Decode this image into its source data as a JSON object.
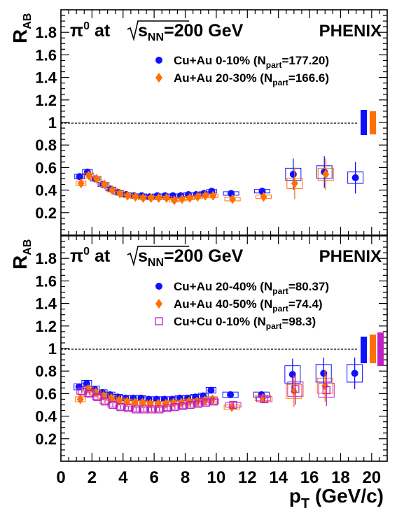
{
  "chart_data": {
    "type": "scatter",
    "xlabel": "p",
    "xlabel_sub": "T",
    "xlabel_unit": " (GeV/c)",
    "xlim": [
      0,
      21
    ],
    "x_ticks": [
      "0",
      "2",
      "4",
      "6",
      "8",
      "10",
      "12",
      "14",
      "16",
      "18",
      "20"
    ],
    "panels": [
      {
        "ylabel": "R",
        "ylabel_sub": "AB",
        "ylim": [
          0,
          2
        ],
        "y_ticks": [
          "0.2",
          "0.4",
          "0.6",
          "0.8",
          "1",
          "1.2",
          "1.4",
          "1.6",
          "1.8"
        ],
        "title": {
          "pi": "π",
          "sup": "0",
          "at": " at ",
          "sqrt_s": "s",
          "nn": "NN",
          "energy": "=200 GeV"
        },
        "experiment": "PHENIX",
        "reference_line": 1,
        "series": [
          {
            "name": "Cu+Au   0-10% (N",
            "name_sub": "part",
            "name_end": "=177.20)",
            "marker": "circle",
            "color": "#1010ff",
            "x": [
              1.25,
              1.75,
              2.25,
              2.75,
              3.25,
              3.75,
              4.25,
              4.75,
              5.25,
              5.75,
              6.25,
              6.75,
              7.25,
              7.75,
              8.25,
              8.75,
              9.25,
              9.75,
              11,
              13,
              15,
              17,
              19
            ],
            "y": [
              0.52,
              0.56,
              0.5,
              0.45,
              0.41,
              0.38,
              0.36,
              0.35,
              0.35,
              0.34,
              0.35,
              0.35,
              0.35,
              0.35,
              0.36,
              0.36,
              0.37,
              0.39,
              0.37,
              0.39,
              0.54,
              0.56,
              0.51
            ]
          },
          {
            "name": "Au+Au 20-30% (N",
            "name_sub": "part",
            "name_end": "=166.6)",
            "marker": "diamond",
            "color": "#ff7000",
            "x": [
              1.25,
              1.75,
              2.25,
              2.75,
              3.25,
              3.75,
              4.25,
              4.75,
              5.25,
              5.75,
              6.25,
              6.75,
              7.25,
              7.75,
              8.25,
              8.75,
              9.25,
              9.75,
              11,
              13,
              15,
              17
            ],
            "y": [
              0.46,
              0.53,
              0.5,
              0.45,
              0.4,
              0.37,
              0.35,
              0.34,
              0.33,
              0.33,
              0.33,
              0.33,
              0.31,
              0.32,
              0.33,
              0.34,
              0.35,
              0.35,
              0.32,
              0.34,
              0.46,
              0.54
            ]
          }
        ]
      },
      {
        "ylabel": "R",
        "ylabel_sub": "AB",
        "ylim": [
          0,
          2
        ],
        "y_ticks": [
          "0.2",
          "0.4",
          "0.6",
          "0.8",
          "1",
          "1.2",
          "1.4",
          "1.6",
          "1.8"
        ],
        "title": {
          "pi": "π",
          "sup": "0",
          "at": " at ",
          "sqrt_s": "s",
          "nn": "NN",
          "energy": "=200 GeV"
        },
        "experiment": "PHENIX",
        "reference_line": 1,
        "series": [
          {
            "name": "Cu+Au 20-40% (N",
            "name_sub": "part",
            "name_end": "=80.37)",
            "marker": "circle",
            "color": "#1010ff",
            "x": [
              1.25,
              1.75,
              2.25,
              2.75,
              3.25,
              3.75,
              4.25,
              4.75,
              5.25,
              5.75,
              6.25,
              6.75,
              7.25,
              7.75,
              8.25,
              8.75,
              9.25,
              9.75,
              11,
              13,
              15,
              17,
              19
            ],
            "y": [
              0.66,
              0.69,
              0.64,
              0.61,
              0.59,
              0.57,
              0.56,
              0.56,
              0.56,
              0.55,
              0.55,
              0.55,
              0.55,
              0.56,
              0.56,
              0.57,
              0.58,
              0.63,
              0.59,
              0.59,
              0.77,
              0.78,
              0.78
            ]
          },
          {
            "name": "Au+Au 40-50% (N",
            "name_sub": "part",
            "name_end": "=74.4)",
            "marker": "diamond",
            "color": "#ff7000",
            "x": [
              1.25,
              1.75,
              2.25,
              2.75,
              3.25,
              3.75,
              4.25,
              4.75,
              5.25,
              5.75,
              6.25,
              6.75,
              7.25,
              7.75,
              8.25,
              8.75,
              9.25,
              9.75,
              11,
              13,
              15,
              17
            ],
            "y": [
              0.55,
              0.64,
              0.61,
              0.58,
              0.56,
              0.54,
              0.53,
              0.52,
              0.52,
              0.51,
              0.51,
              0.51,
              0.52,
              0.52,
              0.53,
              0.53,
              0.54,
              0.55,
              0.48,
              0.56,
              0.62,
              0.67
            ]
          },
          {
            "name": "Cu+Cu 0-10% (N",
            "name_sub": "part",
            "name_end": "=98.3)",
            "marker": "open-square",
            "color": "#c020c0",
            "x": [
              1.25,
              1.75,
              2.25,
              2.75,
              3.25,
              3.75,
              4.25,
              4.75,
              5.25,
              5.75,
              6.25,
              6.75,
              7.25,
              7.75,
              8.25,
              8.75,
              9.25,
              9.75,
              11,
              13,
              15,
              17
            ],
            "y": [
              0.62,
              0.6,
              0.57,
              0.53,
              0.5,
              0.48,
              0.47,
              0.46,
              0.46,
              0.46,
              0.46,
              0.47,
              0.48,
              0.49,
              0.5,
              0.51,
              0.52,
              0.53,
              0.5,
              0.55,
              0.64,
              0.63
            ]
          }
        ]
      }
    ]
  }
}
